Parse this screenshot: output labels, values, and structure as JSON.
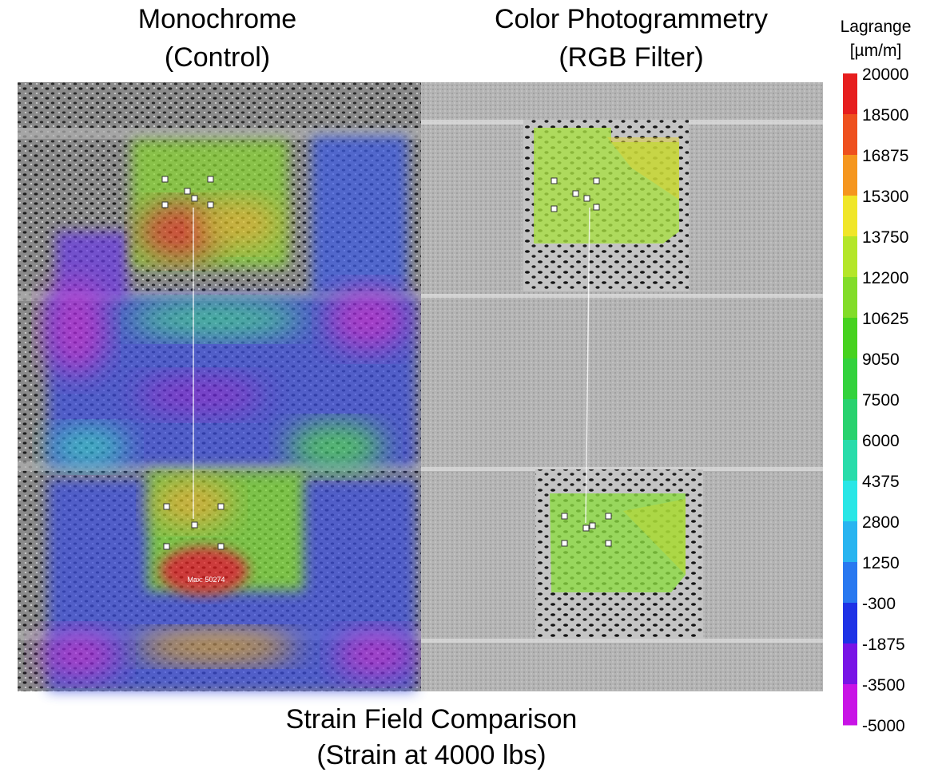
{
  "panels": [
    {
      "title": [
        "Monochrome",
        "(Control)"
      ],
      "annotation": "Max: 50274"
    },
    {
      "title": [
        "Color Photogrammetry",
        "(RGB Filter)"
      ]
    }
  ],
  "caption": [
    "Strain Field Comparison",
    "(Strain at 4000 lbs)"
  ],
  "colorbar": {
    "title": "Lagrange",
    "unit": "[µm/m]",
    "ticks": [
      20000,
      18500,
      16875,
      15300,
      13750,
      12200,
      10625,
      9050,
      7500,
      6000,
      4375,
      2800,
      1250,
      -300,
      -1875,
      -3500,
      -5000
    ],
    "colors": [
      "#e61e1e",
      "#ee501e",
      "#f5961e",
      "#f0e628",
      "#b4e628",
      "#82dc28",
      "#46d21e",
      "#32d23c",
      "#28d26e",
      "#28dcaa",
      "#28e6e6",
      "#28b4f0",
      "#2878f0",
      "#1e32e6",
      "#7814e6",
      "#c814e6"
    ]
  }
}
